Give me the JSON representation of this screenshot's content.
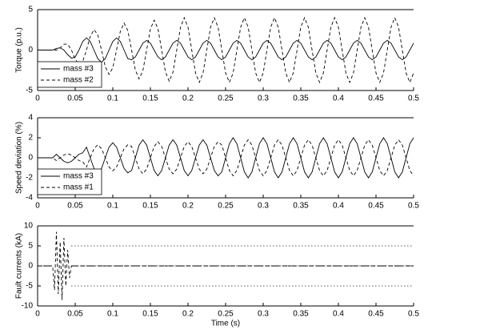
{
  "chart_data": [
    {
      "type": "line",
      "ylabel": "Torque (p.u.)",
      "legend": "lower left",
      "x": [
        0,
        0.005,
        0.01,
        0.015,
        0.02,
        0.025,
        0.03,
        0.035,
        0.04,
        0.045,
        0.05,
        0.055,
        0.06,
        0.065,
        0.07,
        0.075,
        0.08,
        0.085,
        0.09,
        0.095,
        0.1,
        0.105,
        0.11,
        0.115,
        0.12,
        0.125,
        0.13,
        0.135,
        0.14,
        0.145,
        0.15,
        0.155,
        0.16,
        0.165,
        0.17,
        0.175,
        0.18,
        0.185,
        0.19,
        0.195,
        0.2,
        0.205,
        0.21,
        0.215,
        0.22,
        0.225,
        0.23,
        0.235,
        0.24,
        0.245,
        0.25,
        0.255,
        0.26,
        0.265,
        0.27,
        0.275,
        0.28,
        0.285,
        0.29,
        0.295,
        0.3,
        0.305,
        0.31,
        0.315,
        0.32,
        0.325,
        0.33,
        0.335,
        0.34,
        0.345,
        0.35,
        0.355,
        0.36,
        0.365,
        0.37,
        0.375,
        0.38,
        0.385,
        0.39,
        0.395,
        0.4,
        0.405,
        0.41,
        0.415,
        0.42,
        0.425,
        0.43,
        0.435,
        0.44,
        0.445,
        0.45,
        0.455,
        0.46,
        0.465,
        0.47,
        0.475,
        0.48,
        0.485,
        0.49,
        0.495,
        0.5
      ],
      "xlim": [
        0,
        0.5
      ],
      "xticks": [
        0,
        0.05,
        0.1,
        0.15,
        0.2,
        0.25,
        0.3,
        0.35,
        0.4,
        0.45,
        0.5
      ],
      "ylim": [
        -5,
        5
      ],
      "yticks": [
        -5,
        0,
        5
      ],
      "series": [
        {
          "name": "mass #3",
          "color": "#000000",
          "dash": "solid",
          "values": [
            0,
            0,
            0,
            0,
            0,
            0.2,
            0.28,
            0,
            -0.57,
            -1,
            -0.85,
            0,
            1.06,
            1.5,
            1.06,
            0,
            -1.06,
            -1.5,
            -1.06,
            0,
            1.06,
            1.5,
            1.06,
            0,
            -1.06,
            -1.2,
            -0.85,
            0,
            0.85,
            1.2,
            0.85,
            0,
            -0.85,
            -1.2,
            -0.85,
            0,
            0.85,
            1.2,
            0.85,
            0,
            -0.85,
            -1.2,
            -0.85,
            0,
            0.85,
            1.2,
            0.85,
            0,
            -0.85,
            -1.2,
            -0.85,
            0,
            0.85,
            1.2,
            0.85,
            0,
            -0.85,
            -1.2,
            -0.85,
            0,
            0.85,
            1.2,
            0.85,
            0,
            -0.85,
            -1.2,
            -0.85,
            0,
            0.85,
            1.2,
            0.85,
            0,
            -0.85,
            -1.2,
            -0.85,
            0,
            0.85,
            1.2,
            0.85,
            0,
            -0.85,
            -1.2,
            -0.85,
            0,
            0.85,
            1.2,
            0.85,
            0,
            -0.85,
            -1.2,
            -0.85,
            0,
            0.85,
            1.2,
            0.85,
            0,
            -0.85,
            -1.2,
            -0.85,
            0,
            0.85
          ]
        },
        {
          "name": "mass #2",
          "color": "#000000",
          "dash": "dashed",
          "values": [
            0,
            0,
            0,
            0,
            0,
            0,
            0.27,
            0.72,
            0.74,
            0,
            -1.11,
            -1.8,
            -1.42,
            0,
            1.68,
            2.53,
            1.89,
            0,
            -2.06,
            -3.01,
            -2.2,
            0,
            2.31,
            3.34,
            2.4,
            0,
            -2.48,
            -3.56,
            -2.55,
            0,
            2.59,
            3.7,
            2.65,
            0,
            -2.69,
            -3.85,
            -2.76,
            0,
            2.8,
            4,
            2.83,
            0,
            -2.83,
            -4,
            -2.83,
            0,
            2.83,
            4,
            2.83,
            0,
            -2.83,
            -4,
            -2.83,
            0,
            2.83,
            4,
            2.83,
            0,
            -2.83,
            -4,
            -2.83,
            0,
            2.83,
            4,
            2.83,
            0,
            -2.83,
            -4,
            -2.83,
            0,
            2.83,
            4,
            2.83,
            0,
            -2.83,
            -4,
            -2.83,
            0,
            2.83,
            4,
            2.83,
            0,
            -2.83,
            -4,
            -2.83,
            0,
            2.83,
            4,
            2.83,
            0,
            -2.83,
            -4,
            -2.83,
            0,
            2.83,
            4,
            2.83,
            0,
            -2.83,
            -4,
            -2.83
          ]
        }
      ]
    },
    {
      "type": "line",
      "ylabel": "Speed deviation (%)",
      "legend": "lower left",
      "x": [
        0,
        0.005,
        0.01,
        0.015,
        0.02,
        0.025,
        0.03,
        0.035,
        0.04,
        0.045,
        0.05,
        0.055,
        0.06,
        0.065,
        0.07,
        0.075,
        0.08,
        0.085,
        0.09,
        0.095,
        0.1,
        0.105,
        0.11,
        0.115,
        0.12,
        0.125,
        0.13,
        0.135,
        0.14,
        0.145,
        0.15,
        0.155,
        0.16,
        0.165,
        0.17,
        0.175,
        0.18,
        0.185,
        0.19,
        0.195,
        0.2,
        0.205,
        0.21,
        0.215,
        0.22,
        0.225,
        0.23,
        0.235,
        0.24,
        0.245,
        0.25,
        0.255,
        0.26,
        0.265,
        0.27,
        0.275,
        0.28,
        0.285,
        0.29,
        0.295,
        0.3,
        0.305,
        0.31,
        0.315,
        0.32,
        0.325,
        0.33,
        0.335,
        0.34,
        0.345,
        0.35,
        0.355,
        0.36,
        0.365,
        0.37,
        0.375,
        0.38,
        0.385,
        0.39,
        0.395,
        0.4,
        0.405,
        0.41,
        0.415,
        0.42,
        0.425,
        0.43,
        0.435,
        0.44,
        0.445,
        0.45,
        0.455,
        0.46,
        0.465,
        0.47,
        0.475,
        0.48,
        0.485,
        0.49,
        0.495,
        0.5
      ],
      "xlim": [
        0,
        0.5
      ],
      "xticks": [
        0,
        0.05,
        0.1,
        0.15,
        0.2,
        0.25,
        0.3,
        0.35,
        0.4,
        0.45,
        0.5
      ],
      "ylim": [
        -4,
        4
      ],
      "yticks": [
        -4,
        -2,
        0,
        2,
        4
      ],
      "series": [
        {
          "name": "mass #3",
          "color": "#000000",
          "dash": "solid",
          "values": [
            0,
            0,
            0,
            0,
            0,
            0.35,
            0,
            -0.35,
            -0.5,
            -0.35,
            0,
            0.35,
            0.5,
            1.06,
            0,
            -1.06,
            -1.5,
            -1.06,
            0,
            1.06,
            1.5,
            1.06,
            0,
            -1.06,
            -1.5,
            -1.27,
            0,
            1.27,
            1.8,
            1.27,
            0,
            -1.27,
            -1.8,
            -1.27,
            0,
            1.27,
            1.8,
            1.27,
            0,
            -1.27,
            -1.8,
            -1.27,
            0,
            1.27,
            1.8,
            1.27,
            0,
            -1.27,
            -1.8,
            -1.41,
            0,
            1.41,
            2,
            1.41,
            0,
            -1.41,
            -2,
            -1.41,
            0,
            1.41,
            2,
            1.41,
            0,
            -1.41,
            -2,
            -1.41,
            0,
            1.41,
            2,
            1.41,
            0,
            -1.41,
            -2,
            -1.41,
            0,
            1.41,
            2,
            1.41,
            0,
            -1.41,
            -2,
            -1.41,
            0,
            1.41,
            2,
            1.41,
            0,
            -1.41,
            -2,
            -1.41,
            0,
            1.41,
            2,
            1.41,
            0,
            -1.41,
            -2,
            -1.41,
            0,
            1.41,
            2
          ]
        },
        {
          "name": "mass #1",
          "color": "#000000",
          "dash": "dashed",
          "values": [
            0,
            0,
            0,
            0,
            0,
            -0.28,
            0,
            0.28,
            0.4,
            0.28,
            0,
            -0.28,
            -0.4,
            -0.92,
            0,
            0.92,
            1.3,
            0.92,
            0,
            -0.92,
            -1.3,
            -0.92,
            0,
            0.92,
            1.3,
            1.13,
            0,
            -1.13,
            -1.6,
            -1.13,
            0,
            1.13,
            1.6,
            1.13,
            0,
            -1.13,
            -1.6,
            -1.13,
            0,
            1.13,
            1.6,
            1.13,
            0,
            -1.13,
            -1.6,
            -1.13,
            0,
            1.13,
            1.6,
            1.27,
            0,
            -1.27,
            -1.8,
            -1.27,
            0,
            1.27,
            1.8,
            1.27,
            0,
            -1.27,
            -1.8,
            -1.27,
            0,
            1.27,
            1.8,
            1.27,
            0,
            -1.27,
            -1.8,
            -1.27,
            0,
            1.27,
            1.8,
            1.27,
            0,
            -1.27,
            -1.8,
            -1.27,
            0,
            1.27,
            1.8,
            1.27,
            0,
            -1.27,
            -1.8,
            -1.27,
            0,
            1.27,
            1.8,
            1.27,
            0,
            -1.27,
            -1.8,
            -1.27,
            0,
            1.27,
            1.8,
            1.27,
            0,
            -1.27,
            -1.8
          ]
        }
      ]
    },
    {
      "type": "line",
      "ylabel": "Fault currents (kA)",
      "xlabel": "Time (s)",
      "x": [
        0,
        0.02,
        0.0225,
        0.025,
        0.0275,
        0.03,
        0.0325,
        0.035,
        0.0375,
        0.04,
        0.0425,
        0.045,
        0.5
      ],
      "xlim": [
        0,
        0.5
      ],
      "xticks": [
        0,
        0.05,
        0.1,
        0.15,
        0.2,
        0.25,
        0.3,
        0.35,
        0.4,
        0.45,
        0.5
      ],
      "ylim": [
        -10,
        10
      ],
      "yticks": [
        -10,
        -5,
        0,
        5,
        10
      ],
      "series": [
        {
          "color": "#000000",
          "dash": "dashed",
          "values": [
            0,
            0,
            -6,
            8.5,
            -7,
            6,
            -8.5,
            7,
            -5,
            4,
            -3,
            0,
            0
          ]
        },
        {
          "color": "#000000",
          "dash": "dashdot",
          "values": [
            0,
            0,
            null,
            null,
            null,
            null,
            null,
            null,
            null,
            null,
            null,
            0,
            0
          ]
        },
        {
          "color": "#000000",
          "dash": "dotted",
          "values": [
            null,
            null,
            null,
            null,
            null,
            null,
            null,
            null,
            null,
            null,
            null,
            5,
            5
          ]
        },
        {
          "color": "#000000",
          "dash": "dotted",
          "values": [
            null,
            null,
            null,
            null,
            null,
            null,
            null,
            null,
            null,
            null,
            null,
            -5,
            -5
          ]
        }
      ]
    }
  ]
}
